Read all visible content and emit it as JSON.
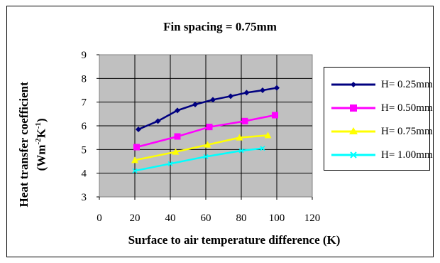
{
  "chart_data": {
    "type": "line",
    "title": "Fin spacing = 0.75mm",
    "ylabel_main": "Heat transfer coefficient",
    "ylabel_unit_pre": "(Wm",
    "ylabel_sup1": "-2",
    "ylabel_mid": "K",
    "ylabel_sup2": "-1",
    "ylabel_unit_post": ")",
    "xlabel": "Surface to air temperature difference (K)",
    "xlim": [
      0,
      120
    ],
    "ylim": [
      3,
      9
    ],
    "xticks": [
      "0",
      "20",
      "40",
      "60",
      "80",
      "100",
      "120"
    ],
    "yticks": [
      "3",
      "4",
      "5",
      "6",
      "7",
      "8",
      "9"
    ],
    "grid": true,
    "plot_background": "#c0c0c0",
    "legend_position": "right",
    "series": [
      {
        "name": "H= 0.25mm",
        "color": "#000080",
        "marker": "diamond",
        "x": [
          22,
          33,
          44,
          54,
          64,
          74,
          83,
          92,
          100
        ],
        "y": [
          5.85,
          6.2,
          6.65,
          6.9,
          7.1,
          7.25,
          7.4,
          7.5,
          7.6
        ]
      },
      {
        "name": "H= 0.50mm",
        "color": "#ff00ff",
        "marker": "square",
        "x": [
          21,
          44,
          62,
          82,
          99
        ],
        "y": [
          5.1,
          5.55,
          5.95,
          6.2,
          6.45
        ]
      },
      {
        "name": "H= 0.75mm",
        "color": "#ffff00",
        "marker": "triangle",
        "x": [
          20,
          43,
          61,
          79,
          95
        ],
        "y": [
          4.55,
          4.9,
          5.2,
          5.5,
          5.6
        ]
      },
      {
        "name": "H= 1.00mm",
        "color": "#00ffff",
        "marker": "x",
        "x": [
          20,
          40,
          60,
          80,
          92
        ],
        "y": [
          4.1,
          4.4,
          4.7,
          4.95,
          5.05
        ]
      }
    ]
  }
}
